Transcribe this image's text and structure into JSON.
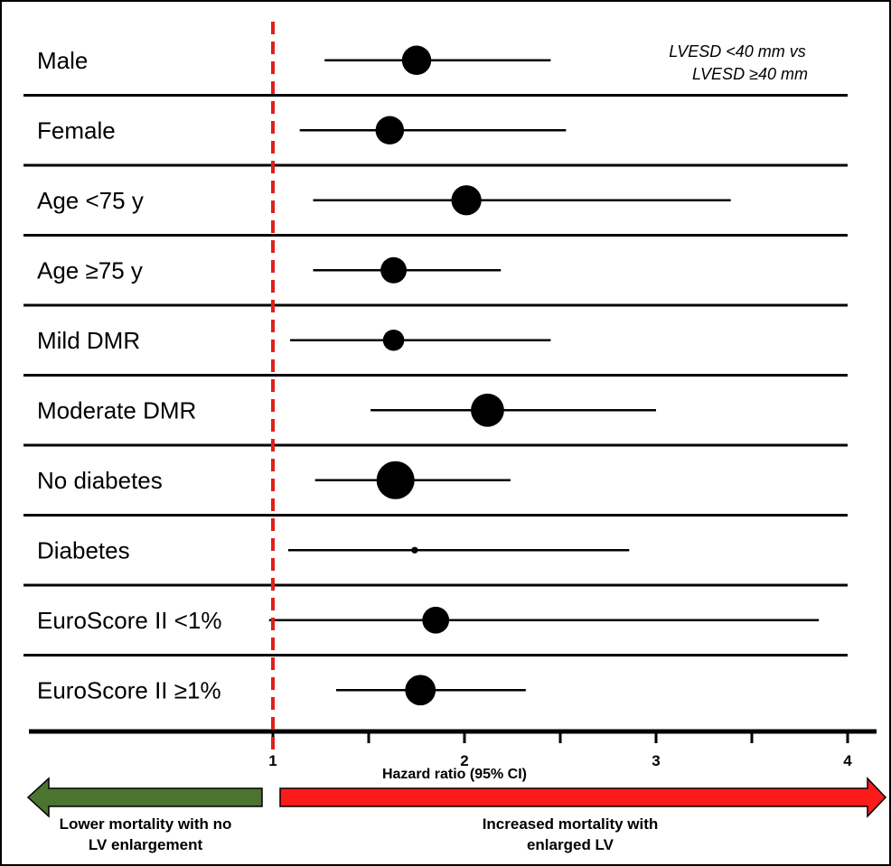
{
  "chart_data": {
    "type": "forest",
    "annotation_lines": [
      "LVESD <40 mm vs",
      "LVESD ≥40 mm"
    ],
    "xlabel": "Hazard ratio (95% CI)",
    "xlim": [
      0.0,
      4.15
    ],
    "xticks": [
      1,
      1.5,
      2,
      2.5,
      3,
      3.5,
      4
    ],
    "xtick_labels": [
      "1",
      "",
      "2",
      "",
      "3",
      "",
      "4"
    ],
    "reference_line": 1,
    "reference_color": "#e0201b",
    "rows": [
      {
        "label": "Male",
        "hr": 1.75,
        "lower": 1.27,
        "upper": 2.45,
        "weight": 0.6
      },
      {
        "label": "Female",
        "hr": 1.61,
        "lower": 1.14,
        "upper": 2.53,
        "weight": 0.58
      },
      {
        "label": "Age <75 y",
        "hr": 2.01,
        "lower": 1.21,
        "upper": 3.39,
        "weight": 0.62
      },
      {
        "label": "Age ≥75 y",
        "hr": 1.63,
        "lower": 1.21,
        "upper": 2.19,
        "weight": 0.52
      },
      {
        "label": "Mild DMR",
        "hr": 1.63,
        "lower": 1.09,
        "upper": 2.45,
        "weight": 0.4
      },
      {
        "label": "Moderate DMR",
        "hr": 2.12,
        "lower": 1.51,
        "upper": 3.0,
        "weight": 0.7
      },
      {
        "label": "No diabetes",
        "hr": 1.64,
        "lower": 1.22,
        "upper": 2.24,
        "weight": 0.82
      },
      {
        "label": "Diabetes",
        "hr": 1.74,
        "lower": 1.08,
        "upper": 2.86,
        "weight": 0.03
      },
      {
        "label": "EuroScore II <1%",
        "hr": 1.85,
        "lower": 0.98,
        "upper": 3.85,
        "weight": 0.54
      },
      {
        "label": "EuroScore II ≥1%",
        "hr": 1.77,
        "lower": 1.33,
        "upper": 2.32,
        "weight": 0.63
      }
    ],
    "arrows": {
      "left": {
        "lines": [
          "Lower mortality with no",
          "LV enlargement"
        ],
        "color": "#4a7430"
      },
      "right": {
        "lines": [
          "Increased mortality with",
          "enlarged LV"
        ],
        "color": "#ff1a1a"
      }
    }
  }
}
